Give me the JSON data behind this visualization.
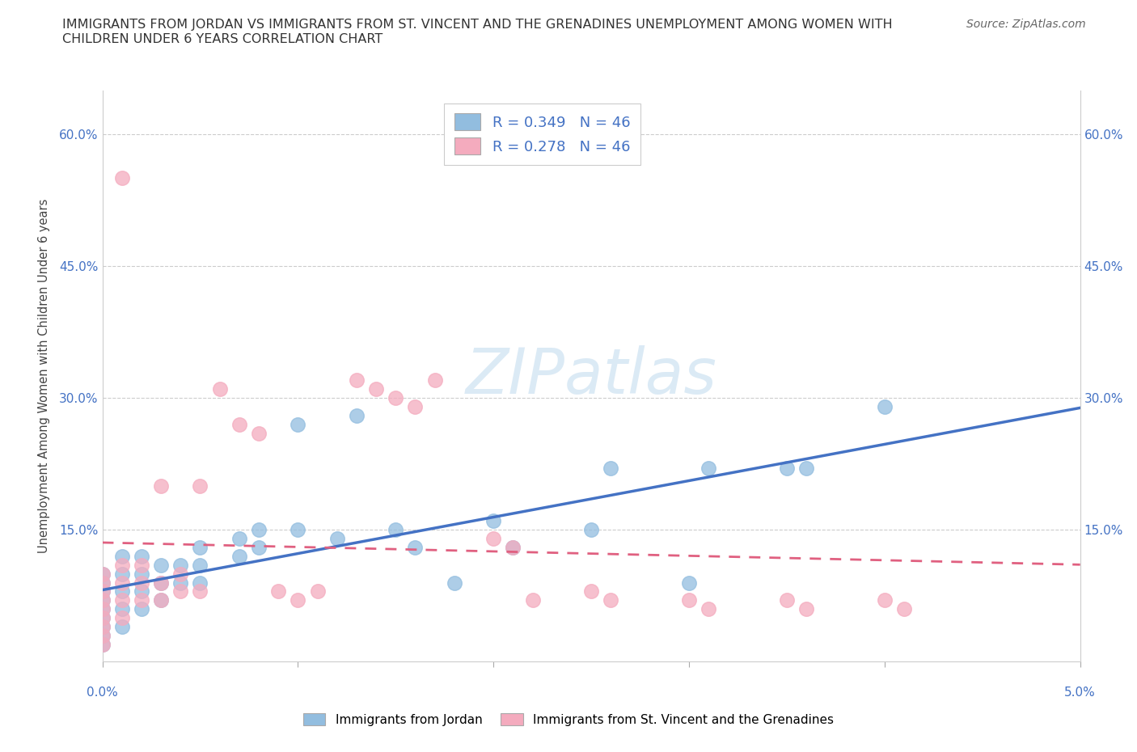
{
  "title": "IMMIGRANTS FROM JORDAN VS IMMIGRANTS FROM ST. VINCENT AND THE GRENADINES UNEMPLOYMENT AMONG WOMEN WITH\nCHILDREN UNDER 6 YEARS CORRELATION CHART",
  "source": "Source: ZipAtlas.com",
  "ylabel": "Unemployment Among Women with Children Under 6 years",
  "legend1_label": "Immigrants from Jordan",
  "legend2_label": "Immigrants from St. Vincent and the Grenadines",
  "R1": 0.349,
  "N1": 46,
  "R2": 0.278,
  "N2": 46,
  "color_blue": "#92BDDF",
  "color_pink": "#F4ABBE",
  "color_blue_line": "#4472C4",
  "color_pink_line": "#E06080",
  "color_blue_text": "#4472C4",
  "jordan_x": [
    0.0,
    0.0,
    0.0,
    0.0,
    0.0,
    0.0,
    0.0,
    0.0,
    0.0,
    0.001,
    0.001,
    0.001,
    0.001,
    0.001,
    0.002,
    0.002,
    0.002,
    0.002,
    0.003,
    0.003,
    0.003,
    0.004,
    0.004,
    0.005,
    0.005,
    0.005,
    0.007,
    0.007,
    0.008,
    0.008,
    0.01,
    0.01,
    0.012,
    0.013,
    0.015,
    0.016,
    0.018,
    0.02,
    0.021,
    0.025,
    0.026,
    0.03,
    0.031,
    0.035,
    0.036,
    0.04
  ],
  "jordan_y": [
    0.02,
    0.03,
    0.04,
    0.05,
    0.06,
    0.07,
    0.08,
    0.09,
    0.1,
    0.04,
    0.06,
    0.08,
    0.1,
    0.12,
    0.06,
    0.08,
    0.1,
    0.12,
    0.07,
    0.09,
    0.11,
    0.09,
    0.11,
    0.09,
    0.11,
    0.13,
    0.12,
    0.14,
    0.13,
    0.15,
    0.15,
    0.27,
    0.14,
    0.28,
    0.15,
    0.13,
    0.09,
    0.16,
    0.13,
    0.15,
    0.22,
    0.09,
    0.22,
    0.22,
    0.22,
    0.29
  ],
  "stvincent_x": [
    0.0,
    0.0,
    0.0,
    0.0,
    0.0,
    0.0,
    0.0,
    0.0,
    0.0,
    0.001,
    0.001,
    0.001,
    0.001,
    0.002,
    0.002,
    0.002,
    0.003,
    0.003,
    0.003,
    0.004,
    0.004,
    0.005,
    0.005,
    0.006,
    0.007,
    0.008,
    0.009,
    0.01,
    0.011,
    0.013,
    0.014,
    0.015,
    0.016,
    0.017,
    0.02,
    0.021,
    0.022,
    0.025,
    0.026,
    0.03,
    0.031,
    0.035,
    0.036,
    0.04,
    0.041,
    0.001
  ],
  "stvincent_y": [
    0.02,
    0.03,
    0.04,
    0.05,
    0.06,
    0.07,
    0.08,
    0.09,
    0.1,
    0.05,
    0.07,
    0.09,
    0.11,
    0.07,
    0.09,
    0.11,
    0.07,
    0.09,
    0.2,
    0.08,
    0.1,
    0.08,
    0.2,
    0.31,
    0.27,
    0.26,
    0.08,
    0.07,
    0.08,
    0.32,
    0.31,
    0.3,
    0.29,
    0.32,
    0.14,
    0.13,
    0.07,
    0.08,
    0.07,
    0.07,
    0.06,
    0.07,
    0.06,
    0.07,
    0.06,
    0.55
  ],
  "xlim": [
    0.0,
    0.05
  ],
  "ylim": [
    0.0,
    0.65
  ],
  "ytick_vals": [
    0.0,
    0.15,
    0.3,
    0.45,
    0.6
  ],
  "ytick_labels": [
    "",
    "15.0%",
    "30.0%",
    "45.0%",
    "60.0%"
  ]
}
